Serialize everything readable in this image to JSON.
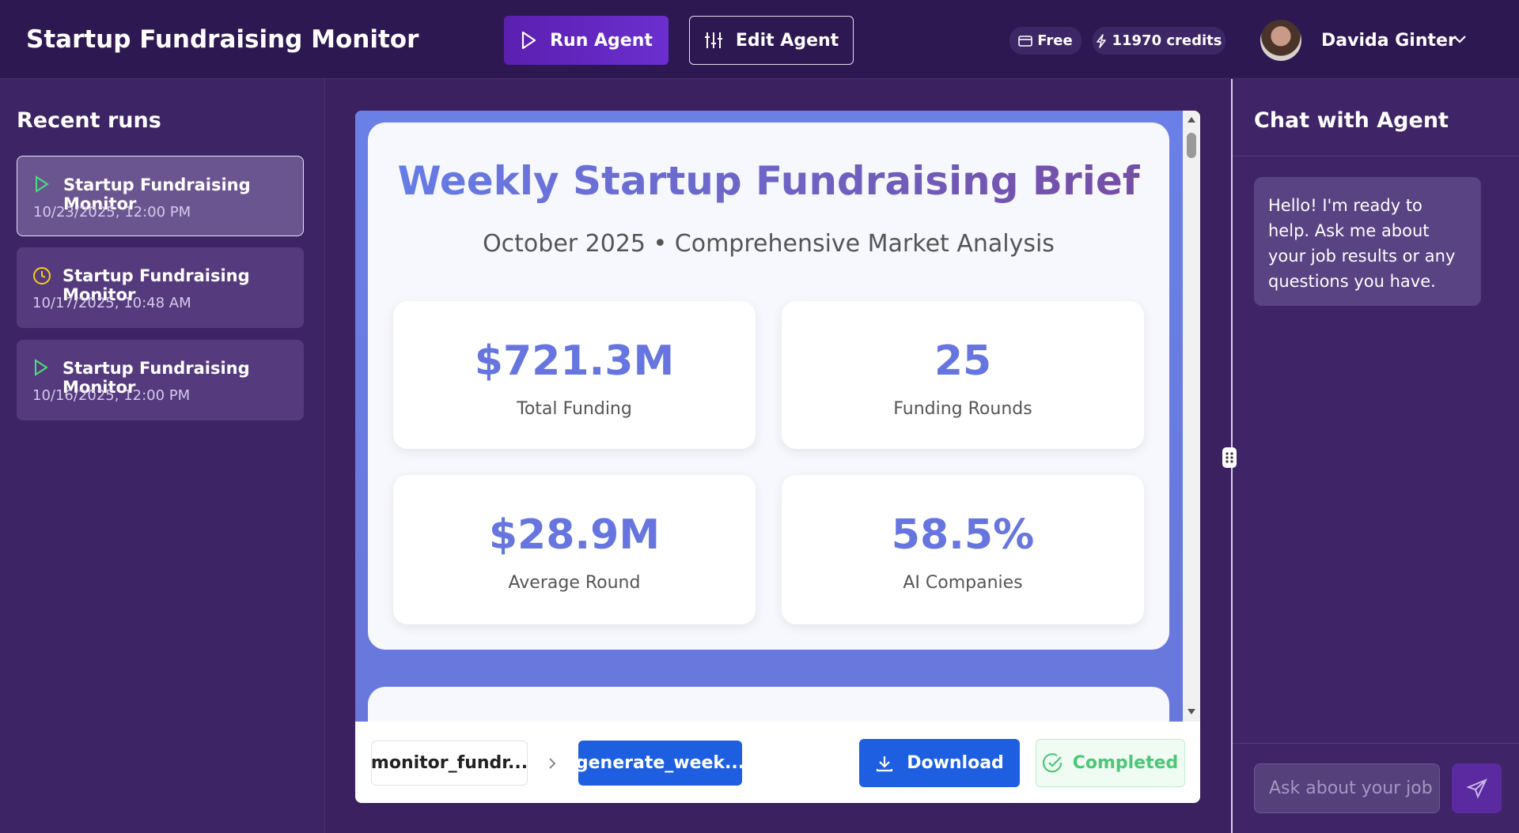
{
  "header": {
    "title": "Startup Fundraising Monitor",
    "run_button": "Run Agent",
    "edit_button": "Edit Agent",
    "plan": "Free",
    "credits": "11970 credits",
    "user": "Davida Ginter"
  },
  "sidebar": {
    "title": "Recent runs",
    "runs": [
      {
        "name": "Startup Fundraising Monitor",
        "time": "10/23/2025, 12:00 PM"
      },
      {
        "name": "Startup Fundraising Monitor",
        "time": "10/17/2025, 10:48 AM"
      },
      {
        "name": "Startup Fundraising Monitor",
        "time": "10/16/2025, 12:00 PM"
      }
    ]
  },
  "report": {
    "title": "Weekly Startup Fundraising Brief",
    "subtitle": "October 2025 • Comprehensive Market Analysis",
    "stats": [
      {
        "value": "$721.3M",
        "label": "Total Funding"
      },
      {
        "value": "25",
        "label": "Funding Rounds"
      },
      {
        "value": "$28.9M",
        "label": "Average Round"
      },
      {
        "value": "58.5%",
        "label": "AI Companies"
      }
    ]
  },
  "footer": {
    "steps": [
      "monitor_fundr...",
      "generate_week..."
    ],
    "download": "Download",
    "status": "Completed"
  },
  "chat": {
    "title": "Chat with Agent",
    "message": "Hello! I'm ready to help. Ask me about your job results or any questions you have.",
    "placeholder": "Ask about your job r"
  }
}
